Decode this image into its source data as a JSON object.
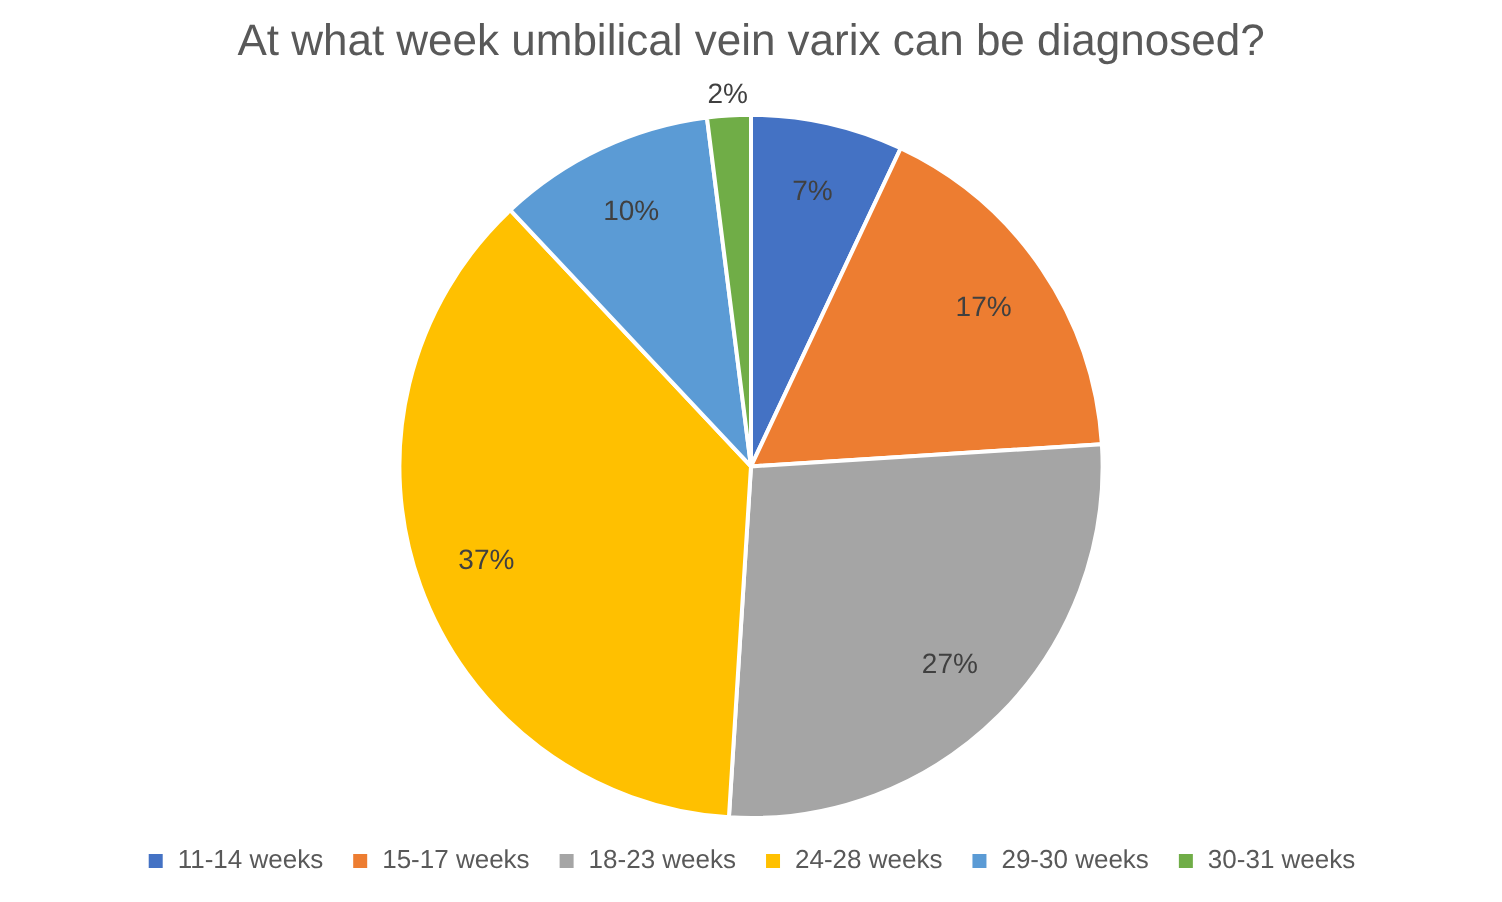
{
  "chart_data": {
    "type": "pie",
    "title": "At what week umbilical vein varix can be diagnosed?",
    "categories": [
      "11-14 weeks",
      "15-17 weeks",
      "18-23 weeks",
      "24-28 weeks",
      "29-30 weeks",
      "30-31 weeks"
    ],
    "values": [
      7,
      17,
      27,
      37,
      10,
      2
    ],
    "colors": [
      "#4472c4",
      "#ed7d31",
      "#a5a5a5",
      "#ffc000",
      "#5b9bd5",
      "#70ad47"
    ],
    "value_labels": [
      "7%",
      "17%",
      "27%",
      "37%",
      "10%",
      "2%"
    ],
    "legend": "bottom"
  }
}
